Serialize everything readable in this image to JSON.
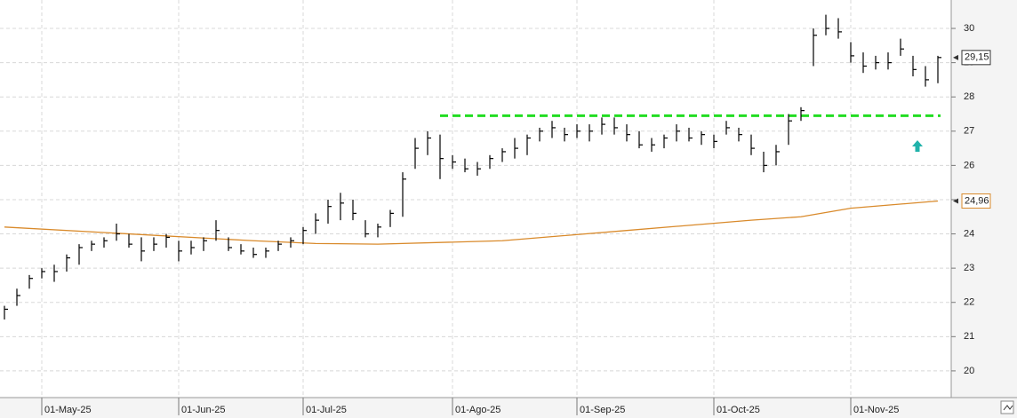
{
  "chart_data": {
    "type": "ohlc",
    "categories": [
      null,
      null,
      null,
      "01-May-25",
      null,
      null,
      null,
      null,
      null,
      null,
      null,
      null,
      null,
      null,
      "01-Jun-25",
      null,
      null,
      null,
      null,
      null,
      null,
      null,
      null,
      null,
      "01-Jul-25",
      null,
      null,
      null,
      null,
      null,
      null,
      null,
      null,
      null,
      null,
      null,
      "01-Ago-25",
      null,
      null,
      null,
      null,
      null,
      null,
      null,
      null,
      null,
      "01-Sep-25",
      null,
      null,
      null,
      null,
      null,
      null,
      null,
      null,
      null,
      null,
      "01-Oct-25",
      null,
      null,
      null,
      null,
      null,
      null,
      null,
      null,
      null,
      null,
      "01-Nov-25",
      null,
      null,
      null,
      null,
      null,
      null,
      null
    ],
    "high": [
      21.9,
      22.4,
      22.8,
      23.0,
      23.1,
      23.4,
      23.7,
      23.8,
      23.9,
      24.3,
      24.0,
      23.9,
      23.9,
      24.0,
      23.8,
      23.8,
      23.9,
      24.4,
      23.9,
      23.7,
      23.6,
      23.6,
      23.8,
      23.9,
      24.2,
      24.6,
      25.0,
      25.2,
      25.0,
      24.4,
      24.3,
      24.7,
      25.8,
      26.8,
      27.0,
      26.9,
      26.3,
      26.2,
      26.1,
      26.3,
      26.5,
      26.8,
      26.9,
      27.1,
      27.3,
      27.1,
      27.2,
      27.2,
      27.4,
      27.4,
      27.2,
      27.0,
      26.8,
      26.9,
      27.2,
      27.1,
      27.0,
      26.9,
      27.3,
      27.1,
      26.9,
      26.4,
      26.6,
      27.5,
      27.7,
      30.0,
      30.4,
      30.3,
      29.6,
      29.3,
      29.2,
      29.3,
      29.7,
      29.2,
      28.9,
      29.2
    ],
    "low": [
      21.5,
      21.9,
      22.4,
      22.7,
      22.6,
      22.9,
      23.1,
      23.5,
      23.6,
      23.8,
      23.6,
      23.2,
      23.5,
      23.6,
      23.2,
      23.4,
      23.5,
      23.8,
      23.5,
      23.4,
      23.3,
      23.3,
      23.5,
      23.6,
      23.7,
      24.0,
      24.3,
      24.4,
      24.4,
      23.9,
      23.9,
      24.2,
      24.5,
      25.9,
      26.3,
      25.6,
      25.9,
      25.8,
      25.7,
      25.9,
      26.1,
      26.2,
      26.3,
      26.7,
      26.8,
      26.7,
      26.8,
      26.7,
      26.9,
      26.9,
      26.7,
      26.5,
      26.4,
      26.5,
      26.7,
      26.7,
      26.6,
      26.5,
      26.9,
      26.7,
      26.3,
      25.8,
      26.0,
      26.6,
      27.3,
      28.9,
      29.8,
      29.7,
      29.0,
      28.7,
      28.8,
      28.8,
      29.2,
      28.6,
      28.3,
      28.4
    ],
    "close": [
      21.8,
      22.2,
      22.7,
      22.9,
      22.9,
      23.3,
      23.6,
      23.7,
      23.8,
      24.0,
      23.7,
      23.5,
      23.7,
      23.9,
      23.5,
      23.6,
      23.8,
      24.1,
      23.6,
      23.5,
      23.4,
      23.5,
      23.7,
      23.8,
      24.1,
      24.4,
      24.8,
      24.9,
      24.6,
      24.0,
      24.2,
      24.6,
      25.6,
      26.5,
      26.8,
      26.2,
      26.1,
      25.9,
      25.9,
      26.2,
      26.4,
      26.5,
      26.8,
      27.0,
      27.1,
      26.9,
      27.0,
      27.0,
      27.2,
      27.1,
      26.9,
      26.6,
      26.6,
      26.8,
      27.0,
      26.8,
      26.9,
      26.7,
      27.1,
      26.9,
      26.5,
      26.0,
      26.4,
      27.3,
      27.6,
      29.8,
      30.0,
      29.9,
      29.2,
      28.9,
      29.0,
      29.0,
      29.4,
      28.8,
      28.5,
      29.15
    ],
    "color": "#000000",
    "last_label": "29,15",
    "ylim": [
      19.22,
      30.83
    ],
    "yticks": [
      20,
      21,
      22,
      23,
      24,
      25,
      26,
      27,
      28,
      29,
      30
    ],
    "grid": true,
    "ma": {
      "color": "#d98a2b",
      "x": [
        0,
        10,
        20,
        25,
        30,
        40,
        50,
        60,
        64,
        68,
        75
      ],
      "values": [
        24.2,
        24.0,
        23.8,
        23.72,
        23.7,
        23.8,
        24.1,
        24.4,
        24.5,
        24.75,
        24.96
      ],
      "last_label": "24,96"
    },
    "support": {
      "value": 27.45,
      "from": 35,
      "color": "#22dd22"
    }
  }
}
